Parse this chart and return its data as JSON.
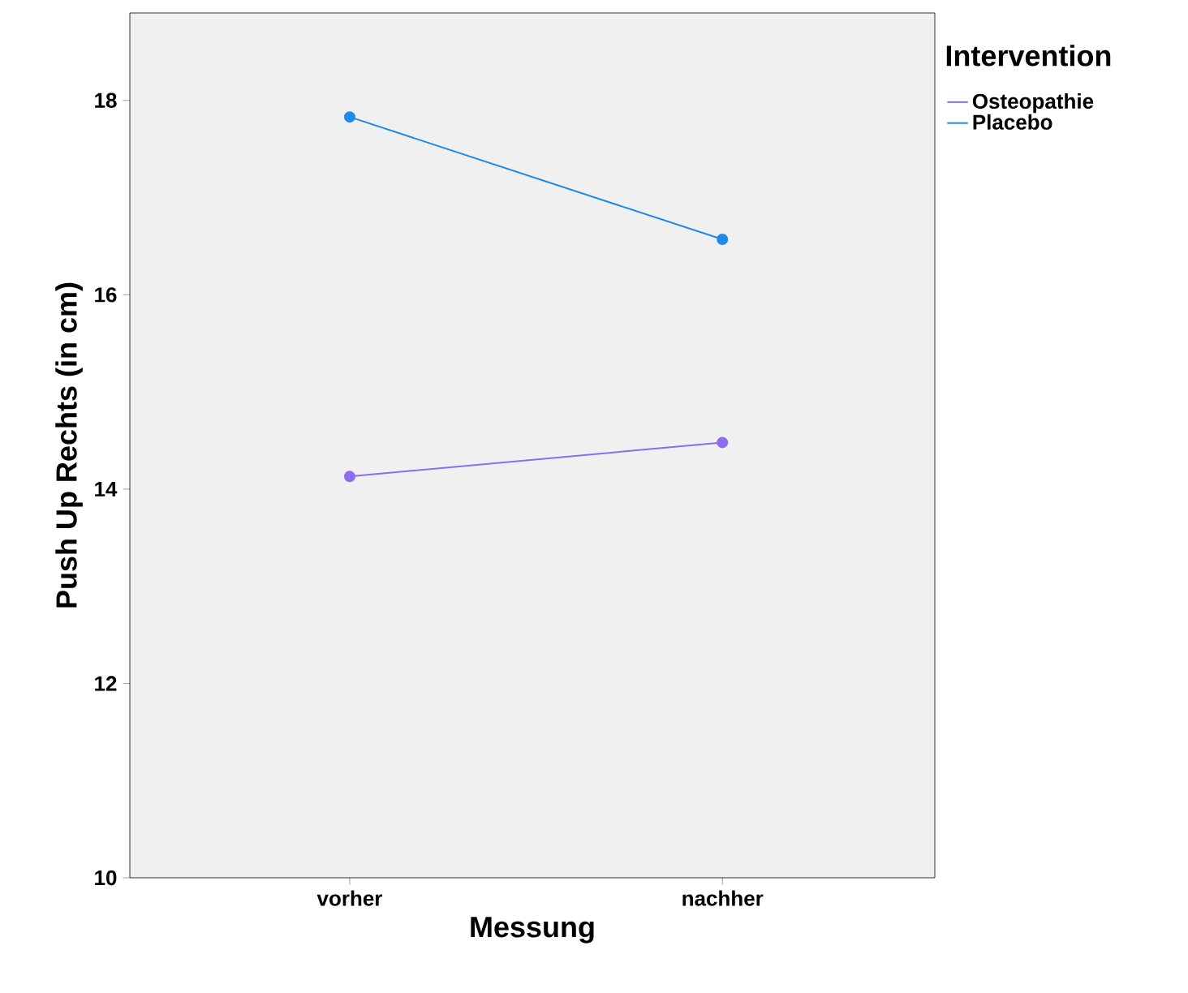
{
  "chart_data": {
    "type": "line",
    "xlabel": "Messung",
    "ylabel": "Push Up Rechts (in cm)",
    "legend_title": "Intervention",
    "categories": [
      "vorher",
      "nachher"
    ],
    "series": [
      {
        "name": "Osteopathie",
        "color": "#8c6cf0",
        "values": [
          14.13,
          14.48
        ]
      },
      {
        "name": "Placebo",
        "color": "#1f8be8",
        "values": [
          17.83,
          16.57
        ]
      }
    ],
    "ylim": [
      10,
      18.9
    ],
    "yticks": [
      10,
      12,
      14,
      16,
      18
    ],
    "grid": false,
    "legend": "top right",
    "marker": "circle",
    "line_style": "solid"
  }
}
